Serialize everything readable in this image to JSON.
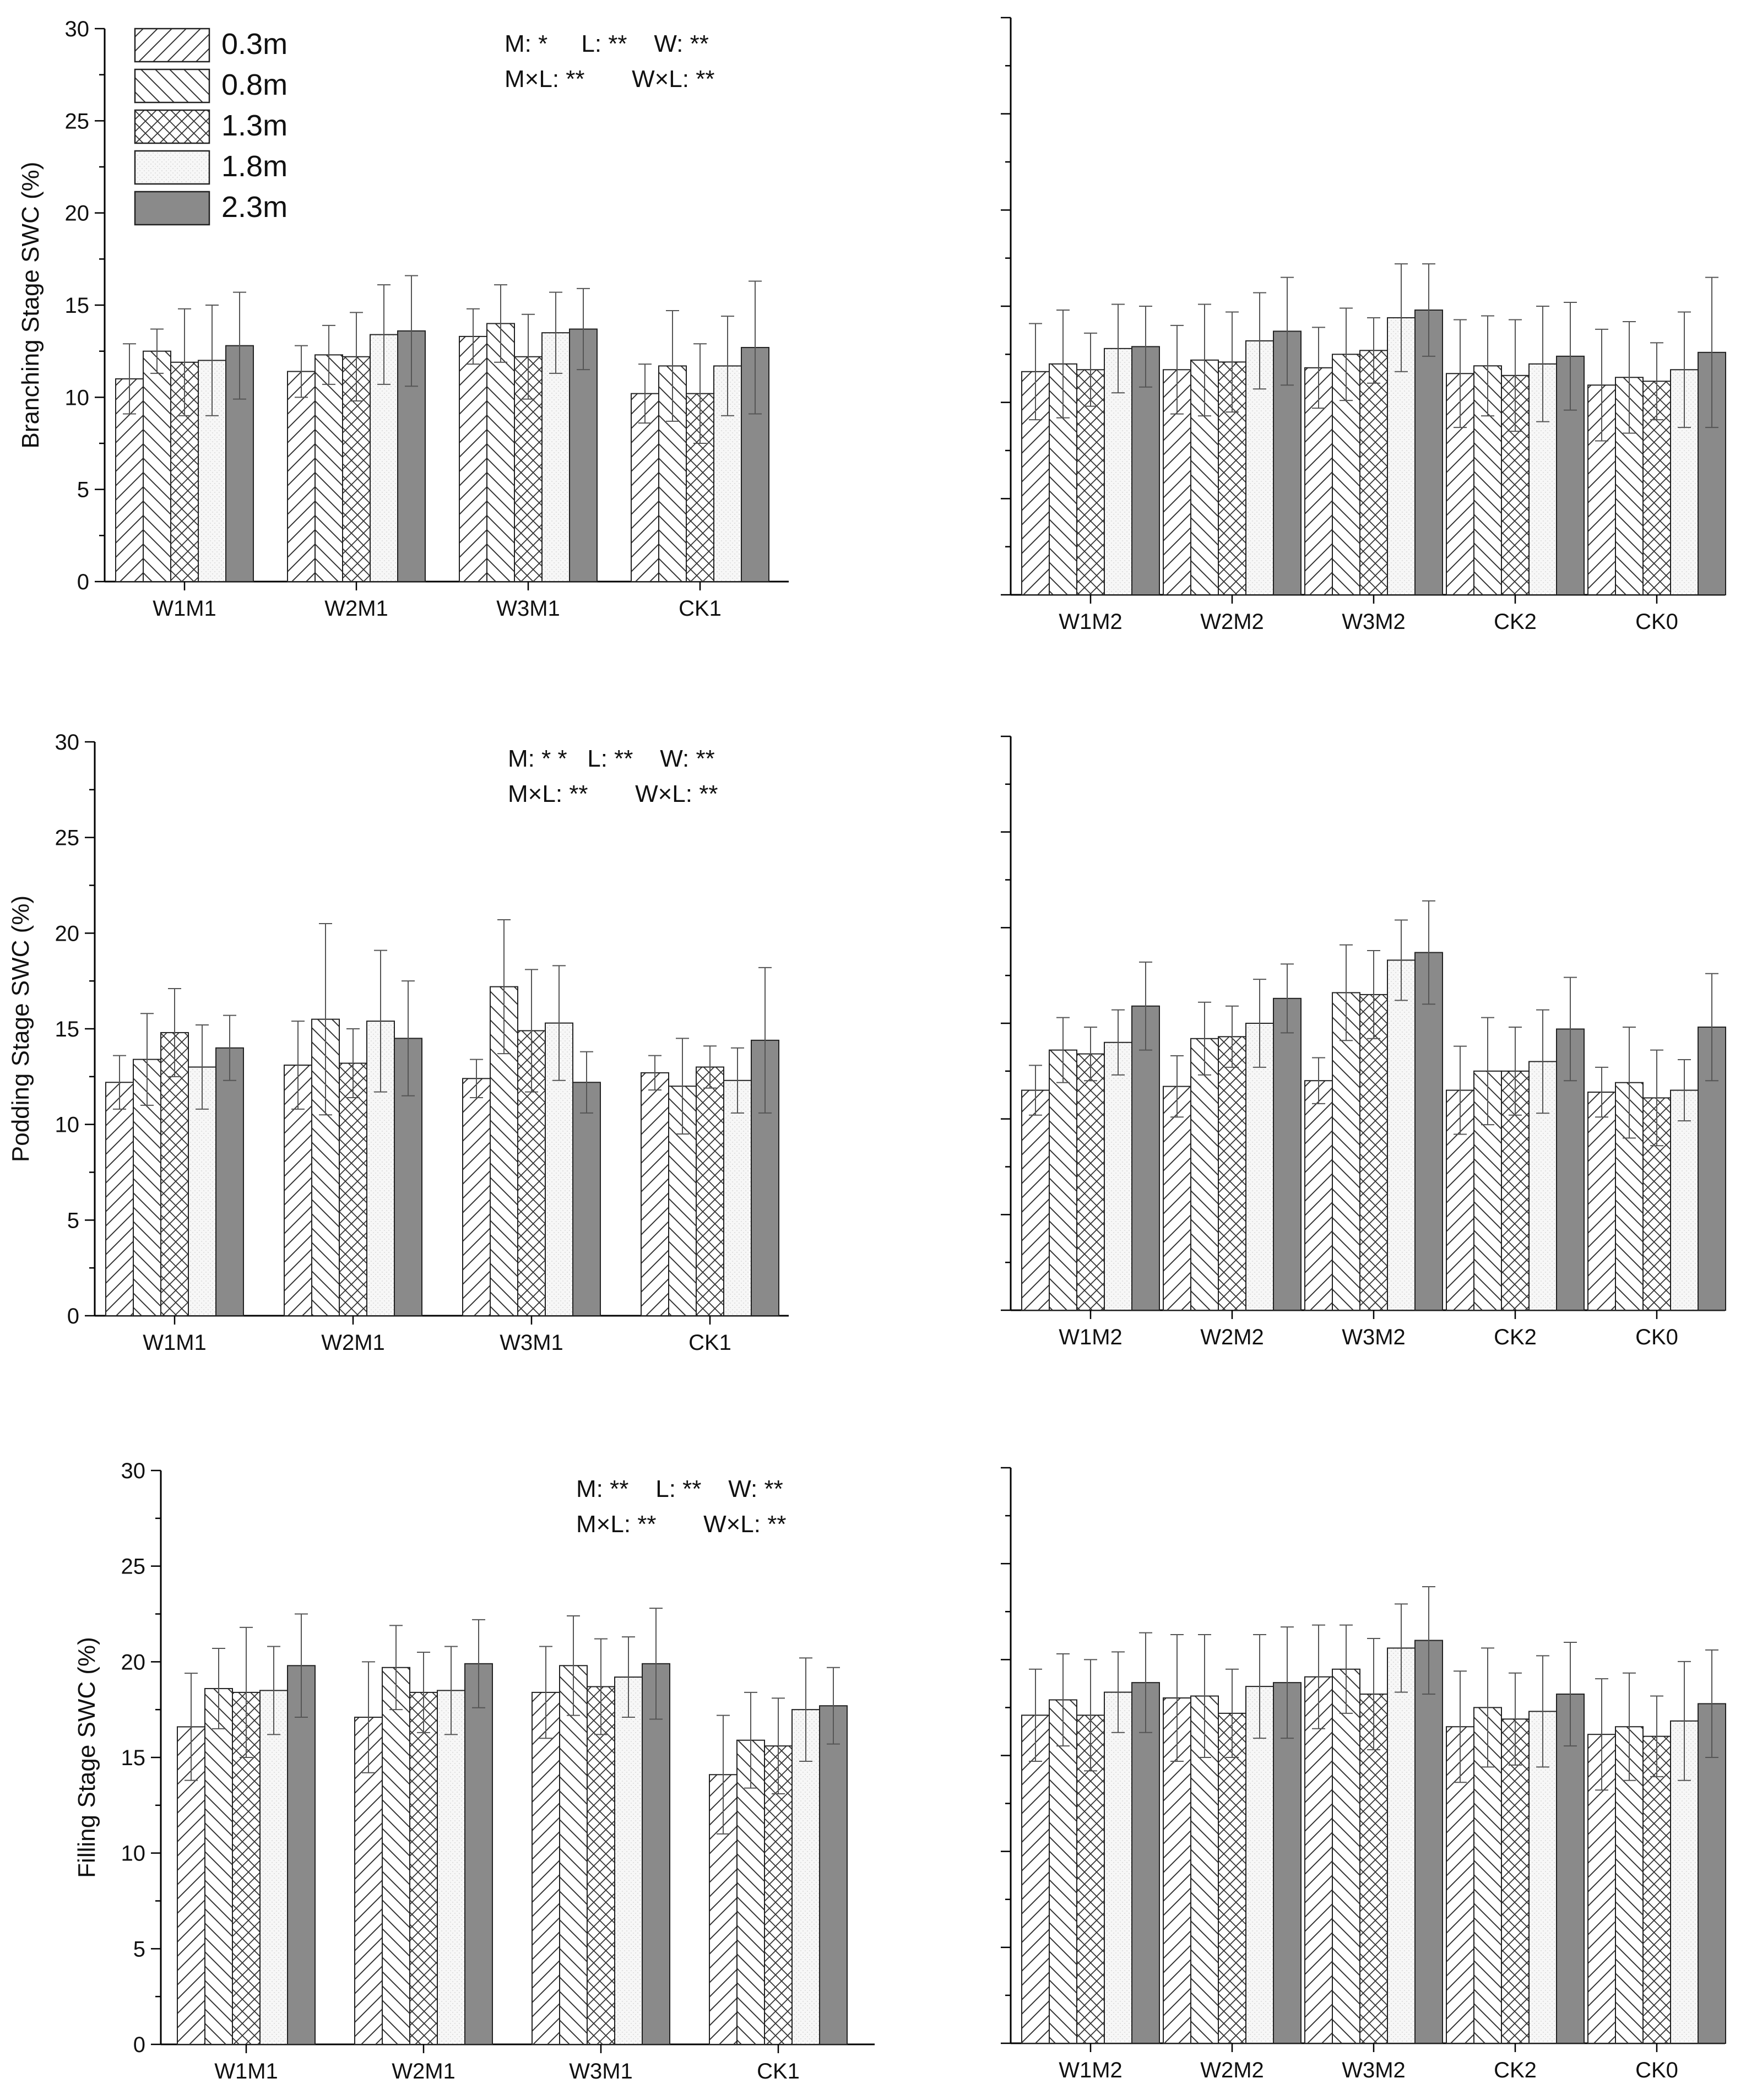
{
  "figure": {
    "legend": {
      "entries": [
        {
          "label": "0.3m",
          "pattern": "diag-right"
        },
        {
          "label": "0.8m",
          "pattern": "diag-left"
        },
        {
          "label": "1.3m",
          "pattern": "crosshatch"
        },
        {
          "label": "1.8m",
          "pattern": "dotted-light"
        },
        {
          "label": "2.3m",
          "pattern": "solid-gray"
        }
      ]
    }
  },
  "chart_data": [
    {
      "id": "branching-m1",
      "type": "bar",
      "title": "",
      "xlabel": "",
      "ylabel": "Branching Stage SWC (%)",
      "ylim": [
        0,
        30
      ],
      "yticks": [
        "0",
        "5",
        "10",
        "15",
        "20",
        "25",
        "30"
      ],
      "show_tick_labels": true,
      "categories": [
        "W1M1",
        "W2M1",
        "W3M1",
        "CK1"
      ],
      "series": [
        {
          "name": "0.3m",
          "values": [
            11.0,
            11.4,
            13.3,
            10.2
          ],
          "errors": [
            1.9,
            1.4,
            1.5,
            1.6
          ]
        },
        {
          "name": "0.8m",
          "values": [
            12.5,
            12.3,
            14.0,
            11.7
          ],
          "errors": [
            1.2,
            1.6,
            2.1,
            3.0
          ]
        },
        {
          "name": "1.3m",
          "values": [
            11.9,
            12.2,
            12.2,
            10.2
          ],
          "errors": [
            2.9,
            2.4,
            2.3,
            2.7
          ]
        },
        {
          "name": "1.8m",
          "values": [
            12.0,
            13.4,
            13.5,
            11.7
          ],
          "errors": [
            3.0,
            2.7,
            2.2,
            2.7
          ]
        },
        {
          "name": "2.3m",
          "values": [
            12.8,
            13.6,
            13.7,
            12.7
          ],
          "errors": [
            2.9,
            3.0,
            2.2,
            3.6
          ]
        }
      ],
      "stats": [
        "M: *     L: **    W: **",
        "M×L: **       W×L: **"
      ]
    },
    {
      "id": "branching-m2",
      "type": "bar",
      "title": "",
      "xlabel": "",
      "ylabel": "",
      "ylim": [
        0,
        30
      ],
      "yticks": [],
      "show_tick_labels": false,
      "categories": [
        "W1M2",
        "W2M2",
        "W3M2",
        "CK2",
        "CK0"
      ],
      "series": [
        {
          "name": "0.3m",
          "values": [
            11.6,
            11.7,
            11.8,
            11.5,
            10.9
          ],
          "errors": [
            2.5,
            2.3,
            2.1,
            2.8,
            2.9
          ]
        },
        {
          "name": "0.8m",
          "values": [
            12.0,
            12.2,
            12.5,
            11.9,
            11.3
          ],
          "errors": [
            2.8,
            2.9,
            2.4,
            2.6,
            2.9
          ]
        },
        {
          "name": "1.3m",
          "values": [
            11.7,
            12.1,
            12.7,
            11.4,
            11.1
          ],
          "errors": [
            1.9,
            2.6,
            1.7,
            2.9,
            2.0
          ]
        },
        {
          "name": "1.8m",
          "values": [
            12.8,
            13.2,
            14.4,
            12.0,
            11.7
          ],
          "errors": [
            2.3,
            2.5,
            2.8,
            3.0,
            3.0
          ]
        },
        {
          "name": "2.3m",
          "values": [
            12.9,
            13.7,
            14.8,
            12.4,
            12.6
          ],
          "errors": [
            2.1,
            2.8,
            2.4,
            2.8,
            3.9
          ]
        }
      ],
      "stats": []
    },
    {
      "id": "podding-m1",
      "type": "bar",
      "title": "",
      "xlabel": "",
      "ylabel": "Podding Stage SWC (%)",
      "ylim": [
        0,
        30
      ],
      "yticks": [
        "0",
        "5",
        "10",
        "15",
        "20",
        "25",
        "30"
      ],
      "show_tick_labels": true,
      "categories": [
        "W1M1",
        "W2M1",
        "W3M1",
        "CK1"
      ],
      "series": [
        {
          "name": "0.3m",
          "values": [
            12.2,
            13.1,
            12.4,
            12.7
          ],
          "errors": [
            1.4,
            2.3,
            1.0,
            0.9
          ]
        },
        {
          "name": "0.8m",
          "values": [
            13.4,
            15.5,
            17.2,
            12.0
          ],
          "errors": [
            2.4,
            5.0,
            3.5,
            2.5
          ]
        },
        {
          "name": "1.3m",
          "values": [
            14.8,
            13.2,
            14.9,
            13.0
          ],
          "errors": [
            2.3,
            1.8,
            3.2,
            1.1
          ]
        },
        {
          "name": "1.8m",
          "values": [
            13.0,
            15.4,
            15.3,
            12.3
          ],
          "errors": [
            2.2,
            3.7,
            3.0,
            1.7
          ]
        },
        {
          "name": "2.3m",
          "values": [
            14.0,
            14.5,
            12.2,
            14.4
          ],
          "errors": [
            1.7,
            3.0,
            1.6,
            3.8
          ]
        }
      ],
      "stats": [
        "M: * *   L: **    W: **",
        "M×L: **       W×L: **"
      ]
    },
    {
      "id": "podding-m2",
      "type": "bar",
      "title": "",
      "xlabel": "",
      "ylabel": "",
      "ylim": [
        0,
        30
      ],
      "yticks": [],
      "show_tick_labels": false,
      "categories": [
        "W1M2",
        "W2M2",
        "W3M2",
        "CK2",
        "CK0"
      ],
      "series": [
        {
          "name": "0.3m",
          "values": [
            11.5,
            11.7,
            12.0,
            11.5,
            11.4
          ],
          "errors": [
            1.3,
            1.6,
            1.2,
            2.3,
            1.3
          ]
        },
        {
          "name": "0.8m",
          "values": [
            13.6,
            14.2,
            16.6,
            12.5,
            11.9
          ],
          "errors": [
            1.7,
            1.9,
            2.5,
            2.8,
            2.9
          ]
        },
        {
          "name": "1.3m",
          "values": [
            13.4,
            14.3,
            16.5,
            12.5,
            11.1
          ],
          "errors": [
            1.4,
            1.6,
            2.3,
            2.3,
            2.5
          ]
        },
        {
          "name": "1.8m",
          "values": [
            14.0,
            15.0,
            18.3,
            13.0,
            11.5
          ],
          "errors": [
            1.7,
            2.3,
            2.1,
            2.7,
            1.6
          ]
        },
        {
          "name": "2.3m",
          "values": [
            15.9,
            16.3,
            18.7,
            14.7,
            14.8
          ],
          "errors": [
            2.3,
            1.8,
            2.7,
            2.7,
            2.8
          ]
        }
      ],
      "stats": []
    },
    {
      "id": "filling-m1",
      "type": "bar",
      "title": "",
      "xlabel": "",
      "ylabel": "Filling Stage SWC (%)",
      "ylim": [
        0,
        30
      ],
      "yticks": [
        "0",
        "5",
        "10",
        "15",
        "20",
        "25",
        "30"
      ],
      "show_tick_labels": true,
      "categories": [
        "W1M1",
        "W2M1",
        "W3M1",
        "CK1"
      ],
      "series": [
        {
          "name": "0.3m",
          "values": [
            16.6,
            17.1,
            18.4,
            14.1
          ],
          "errors": [
            2.8,
            2.9,
            2.4,
            3.1
          ]
        },
        {
          "name": "0.8m",
          "values": [
            18.6,
            19.7,
            19.8,
            15.9
          ],
          "errors": [
            2.1,
            2.2,
            2.6,
            2.5
          ]
        },
        {
          "name": "1.3m",
          "values": [
            18.4,
            18.4,
            18.7,
            15.6
          ],
          "errors": [
            3.4,
            2.1,
            2.5,
            2.5
          ]
        },
        {
          "name": "1.8m",
          "values": [
            18.5,
            18.5,
            19.2,
            17.5
          ],
          "errors": [
            2.3,
            2.3,
            2.1,
            2.7
          ]
        },
        {
          "name": "2.3m",
          "values": [
            19.8,
            19.9,
            19.9,
            17.7
          ],
          "errors": [
            2.7,
            2.3,
            2.9,
            2.0
          ]
        }
      ],
      "stats": [
        "M: **    L: **    W: **",
        "M×L: **       W×L: **"
      ]
    },
    {
      "id": "filling-m2",
      "type": "bar",
      "title": "",
      "xlabel": "",
      "ylabel": "",
      "ylim": [
        0,
        30
      ],
      "yticks": [],
      "show_tick_labels": false,
      "categories": [
        "W1M2",
        "W2M2",
        "W3M2",
        "CK2",
        "CK0"
      ],
      "series": [
        {
          "name": "0.3m",
          "values": [
            17.1,
            18.0,
            19.1,
            16.5,
            16.1
          ],
          "errors": [
            2.4,
            3.3,
            2.7,
            2.9,
            2.9
          ]
        },
        {
          "name": "0.8m",
          "values": [
            17.9,
            18.1,
            19.5,
            17.5,
            16.5
          ],
          "errors": [
            2.4,
            3.2,
            2.3,
            3.1,
            2.8
          ]
        },
        {
          "name": "1.3m",
          "values": [
            17.1,
            17.2,
            18.2,
            16.9,
            16.0
          ],
          "errors": [
            2.9,
            2.3,
            2.9,
            2.4,
            2.1
          ]
        },
        {
          "name": "1.8m",
          "values": [
            18.3,
            18.6,
            20.6,
            17.3,
            16.8
          ],
          "errors": [
            2.1,
            2.7,
            2.3,
            2.9,
            3.1
          ]
        },
        {
          "name": "2.3m",
          "values": [
            18.8,
            18.8,
            21.0,
            18.2,
            17.7
          ],
          "errors": [
            2.6,
            2.9,
            2.8,
            2.7,
            2.8
          ]
        }
      ],
      "stats": []
    }
  ]
}
